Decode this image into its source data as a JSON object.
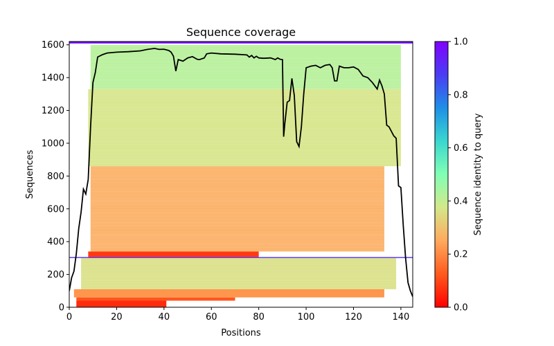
{
  "chart_data": {
    "type": "heatmap",
    "title": "Sequence coverage",
    "xlabel": "Positions",
    "ylabel": "Sequences",
    "xlim": [
      0,
      145
    ],
    "ylim": [
      0,
      1620
    ],
    "x_ticks": [
      "0",
      "20",
      "40",
      "60",
      "80",
      "100",
      "120",
      "140"
    ],
    "y_ticks": [
      "0",
      "200",
      "400",
      "600",
      "800",
      "1000",
      "1200",
      "1400",
      "1600"
    ],
    "colorbar": {
      "label": "Sequence identity to query",
      "range": [
        0,
        1
      ],
      "ticks": [
        "0.0",
        "0.2",
        "0.4",
        "0.6",
        "0.8",
        "1.0"
      ],
      "colormap": "rainbow"
    },
    "bands": [
      {
        "y_from": 0,
        "y_to": 40,
        "x_from": 3,
        "x_to": 41,
        "identity": 0.06
      },
      {
        "y_from": 40,
        "y_to": 60,
        "x_from": 3,
        "x_to": 70,
        "identity": 0.12
      },
      {
        "y_from": 60,
        "y_to": 110,
        "x_from": 2,
        "x_to": 133,
        "identity": 0.22
      },
      {
        "y_from": 110,
        "y_to": 300,
        "x_from": 5,
        "x_to": 138,
        "identity": 0.36
      },
      {
        "y_from": 300,
        "y_to": 306,
        "x_from": 0,
        "x_to": 145,
        "identity": 0.9
      },
      {
        "y_from": 306,
        "y_to": 340,
        "x_from": 8,
        "x_to": 80,
        "identity": 0.08
      },
      {
        "y_from": 340,
        "y_to": 860,
        "x_from": 9,
        "x_to": 133,
        "identity": 0.26
      },
      {
        "y_from": 860,
        "y_to": 1330,
        "x_from": 8,
        "x_to": 140,
        "identity": 0.37
      },
      {
        "y_from": 1330,
        "y_to": 1600,
        "x_from": 9,
        "x_to": 140,
        "identity": 0.42
      },
      {
        "y_from": 1608,
        "y_to": 1620,
        "x_from": 0,
        "x_to": 145,
        "identity": 0.97
      }
    ],
    "coverage": {
      "x": [
        0,
        1,
        2,
        3,
        4,
        5,
        6,
        7,
        8,
        9,
        10,
        11,
        12,
        14,
        16,
        20,
        25,
        30,
        33,
        36,
        38,
        40,
        42,
        43,
        44,
        45,
        46,
        48,
        50,
        52,
        54,
        55,
        57,
        58,
        60,
        64,
        70,
        75,
        76,
        77,
        78,
        79,
        80,
        82,
        85,
        87,
        88,
        89,
        90,
        90.5,
        91,
        92,
        93,
        94,
        95,
        96,
        97,
        98,
        99,
        100,
        102,
        104,
        106,
        108,
        110,
        111,
        112,
        113,
        114,
        116,
        118,
        120,
        122,
        124,
        126,
        128,
        130,
        131,
        132,
        133,
        134,
        135,
        137,
        138,
        139,
        140,
        141,
        142,
        143,
        144,
        145
      ],
      "y": [
        100,
        180,
        220,
        330,
        480,
        580,
        720,
        690,
        780,
        1100,
        1370,
        1430,
        1525,
        1540,
        1550,
        1555,
        1558,
        1563,
        1572,
        1578,
        1572,
        1573,
        1565,
        1555,
        1530,
        1440,
        1510,
        1500,
        1520,
        1528,
        1512,
        1510,
        1520,
        1545,
        1550,
        1545,
        1543,
        1538,
        1525,
        1535,
        1520,
        1530,
        1520,
        1518,
        1520,
        1510,
        1520,
        1512,
        1510,
        1040,
        1120,
        1250,
        1260,
        1395,
        1290,
        1010,
        980,
        1100,
        1300,
        1460,
        1470,
        1475,
        1460,
        1475,
        1480,
        1460,
        1380,
        1380,
        1470,
        1460,
        1460,
        1465,
        1450,
        1410,
        1400,
        1370,
        1330,
        1385,
        1350,
        1300,
        1110,
        1100,
        1045,
        1030,
        740,
        730,
        500,
        300,
        150,
        100,
        65
      ]
    }
  }
}
